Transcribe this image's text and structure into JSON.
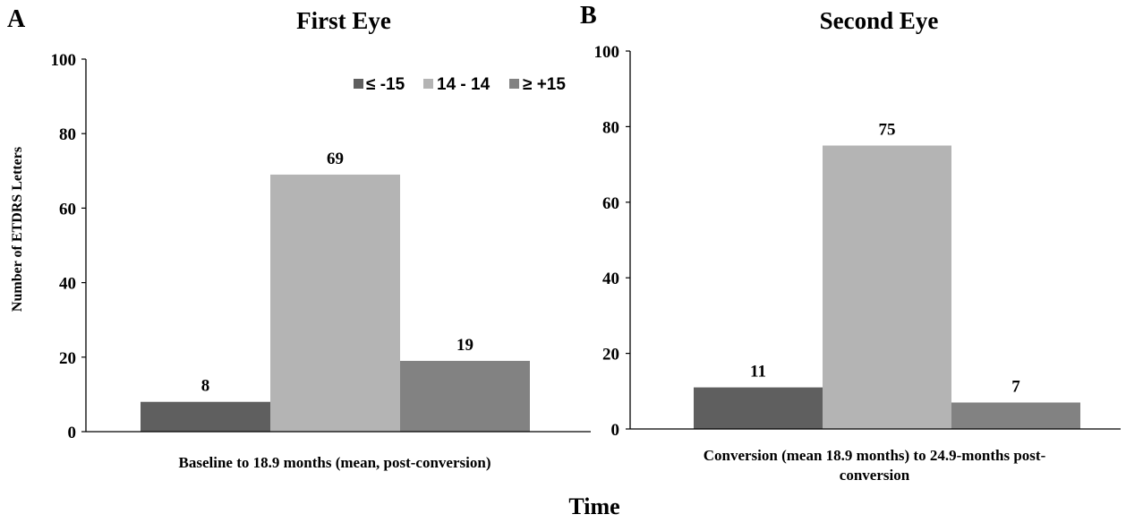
{
  "ylabel": "Number of ETDRS Letters",
  "xlabel": "Time",
  "legend": {
    "placement": "top-right",
    "entries": [
      {
        "label": "≤ -15",
        "color": "#5f5f5f"
      },
      {
        "label": "14 - 14",
        "color": "#b4b4b4"
      },
      {
        "label": "≥ +15",
        "color": "#828282"
      }
    ]
  },
  "chart_data": [
    {
      "type": "bar",
      "panel": "A",
      "title": "First Eye",
      "categories": [
        "Baseline to 18.9 months (mean, post-conversion)"
      ],
      "xlabel_lines": [
        "Baseline to 18.9 months (mean, post-conversion)"
      ],
      "ylabel": "Number of ETDRS Letters",
      "ylim": [
        0,
        100
      ],
      "yticks": [
        0,
        20,
        40,
        60,
        80,
        100
      ],
      "grid": false,
      "series": [
        {
          "name": "≤ -15",
          "color": "#5f5f5f",
          "values": [
            8
          ]
        },
        {
          "name": "14 - 14",
          "color": "#b4b4b4",
          "values": [
            69
          ]
        },
        {
          "name": "≥ +15",
          "color": "#828282",
          "values": [
            19
          ]
        }
      ]
    },
    {
      "type": "bar",
      "panel": "B",
      "title": "Second Eye",
      "categories": [
        "Conversion (mean 18.9 months) to 24.9-months post-conversion"
      ],
      "xlabel_lines": [
        "Conversion (mean 18.9 months) to 24.9-months post-",
        "conversion"
      ],
      "ylabel": "",
      "ylim": [
        0,
        100
      ],
      "yticks": [
        0,
        20,
        40,
        60,
        80,
        100
      ],
      "grid": false,
      "series": [
        {
          "name": "≤ -15",
          "color": "#5f5f5f",
          "values": [
            11
          ]
        },
        {
          "name": "14 - 14",
          "color": "#b4b4b4",
          "values": [
            75
          ]
        },
        {
          "name": "≥ +15",
          "color": "#828282",
          "values": [
            7
          ]
        }
      ]
    }
  ]
}
